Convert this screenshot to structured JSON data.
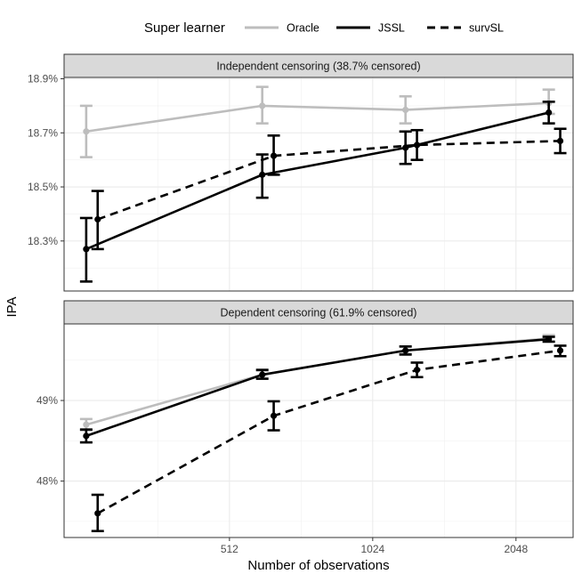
{
  "legend": {
    "title": "Super learner",
    "items": [
      {
        "name": "Oracle",
        "color": "#bdbdbd",
        "dash": "solid"
      },
      {
        "name": "JSSL",
        "color": "#000000",
        "dash": "solid"
      },
      {
        "name": "survSL",
        "color": "#000000",
        "dash": "dashed"
      }
    ]
  },
  "axes": {
    "xlabel": "Number of observations",
    "ylabel": "IPA"
  },
  "chart_data": [
    {
      "type": "line",
      "title": "Independent censoring (38.7% censored)",
      "x": [
        256,
        600,
        1200,
        2400
      ],
      "x_scale": "log2",
      "x_ticks": [
        512,
        1024,
        2048
      ],
      "x_tick_labels": [
        "512",
        "1024",
        "2048"
      ],
      "xlim": [
        230,
        2700
      ],
      "ylim": [
        18.115,
        18.905
      ],
      "y_ticks": [
        18.3,
        18.5,
        18.7,
        18.9
      ],
      "y_tick_labels": [
        "18.3%",
        "18.5%",
        "18.7%",
        "18.9%"
      ],
      "dodge": {
        "Oracle": 0,
        "JSSL": 0,
        "survSL": 0.08
      },
      "series": [
        {
          "name": "Oracle",
          "values": [
            18.705,
            18.8,
            18.785,
            18.81
          ],
          "lower": [
            18.61,
            18.735,
            18.735,
            18.77
          ],
          "upper": [
            18.8,
            18.87,
            18.835,
            18.86
          ]
        },
        {
          "name": "JSSL",
          "values": [
            18.27,
            18.545,
            18.645,
            18.775
          ],
          "lower": [
            18.15,
            18.46,
            18.585,
            18.735
          ],
          "upper": [
            18.385,
            18.62,
            18.705,
            18.815
          ]
        },
        {
          "name": "survSL",
          "values": [
            18.38,
            18.615,
            18.655,
            18.67
          ],
          "lower": [
            18.27,
            18.545,
            18.6,
            18.625
          ],
          "upper": [
            18.485,
            18.69,
            18.71,
            18.715
          ]
        }
      ]
    },
    {
      "type": "line",
      "title": "Dependent censoring (61.9% censored)",
      "x": [
        256,
        600,
        1200,
        2400
      ],
      "x_scale": "log2",
      "x_ticks": [
        512,
        1024,
        2048
      ],
      "x_tick_labels": [
        "512",
        "1024",
        "2048"
      ],
      "xlim": [
        230,
        2700
      ],
      "ylim": [
        47.3,
        49.95
      ],
      "y_ticks": [
        48.0,
        49.0
      ],
      "y_tick_labels": [
        "48%",
        "49%"
      ],
      "dodge": {
        "Oracle": 0,
        "JSSL": 0,
        "survSL": 0.08
      },
      "series": [
        {
          "name": "Oracle",
          "values": [
            48.7,
            49.32,
            49.62,
            49.77
          ],
          "lower": [
            48.63,
            49.27,
            49.58,
            49.73
          ],
          "upper": [
            48.77,
            49.37,
            49.67,
            49.81
          ]
        },
        {
          "name": "JSSL",
          "values": [
            48.56,
            49.32,
            49.62,
            49.76
          ],
          "lower": [
            48.48,
            49.27,
            49.57,
            49.73
          ],
          "upper": [
            48.64,
            49.38,
            49.67,
            49.79
          ]
        },
        {
          "name": "survSL",
          "values": [
            47.6,
            48.81,
            49.38,
            49.62
          ],
          "lower": [
            47.38,
            48.63,
            49.29,
            49.55
          ],
          "upper": [
            47.83,
            48.99,
            49.47,
            49.68
          ]
        }
      ]
    }
  ]
}
